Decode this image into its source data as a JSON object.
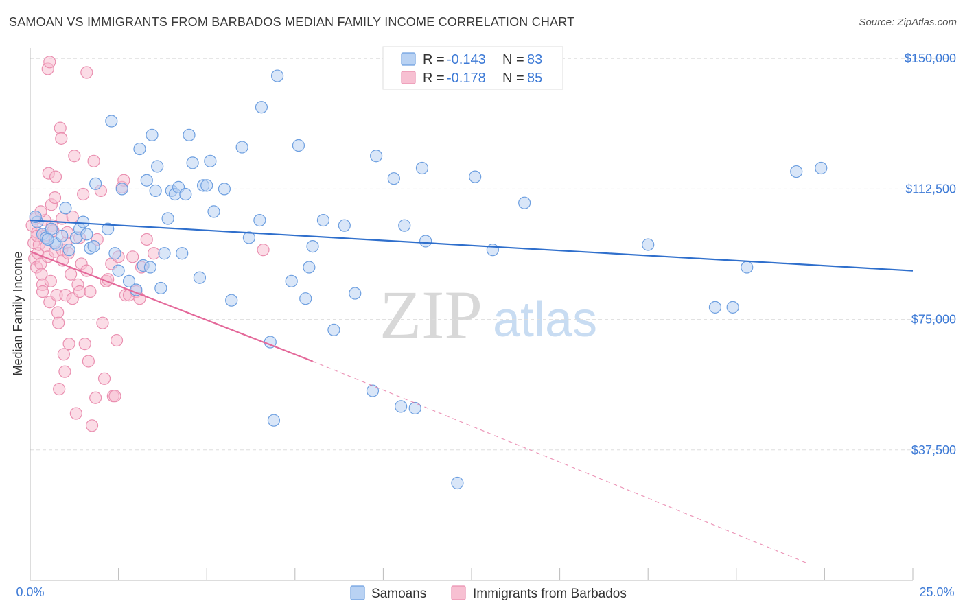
{
  "header": {
    "title": "SAMOAN VS IMMIGRANTS FROM BARBADOS MEDIAN FAMILY INCOME CORRELATION CHART",
    "source": "Source: ZipAtlas.com"
  },
  "watermark": {
    "zip": "ZIP",
    "atlas": "atlas"
  },
  "colors": {
    "samoans_fill": "#b9d2f3",
    "samoans_stroke": "#6d9fe0",
    "samoans_line": "#2f6fcc",
    "barbados_fill": "#f7c0d2",
    "barbados_stroke": "#ea8fb0",
    "barbados_line": "#e4699a",
    "grid": "#dddddd",
    "tick_text": "#3d7ad6"
  },
  "legend": {
    "rows": [
      {
        "r_label": "R =",
        "r_value": "-0.143",
        "n_label": "N =",
        "n_value": "83"
      },
      {
        "r_label": "R =",
        "r_value": "-0.178",
        "n_label": "N =",
        "n_value": "85"
      }
    ]
  },
  "chart_data": {
    "type": "scatter",
    "title": "SAMOAN VS IMMIGRANTS FROM BARBADOS MEDIAN FAMILY INCOME CORRELATION CHART",
    "xlabel": "",
    "ylabel": "Median Family Income",
    "xlim": [
      0,
      25
    ],
    "ylim": [
      0,
      153000
    ],
    "x_tick_labels": [
      "0.0%",
      "25.0%"
    ],
    "y_ticks": [
      {
        "value": 37500,
        "label": "$37,500"
      },
      {
        "value": 75000,
        "label": "$75,000"
      },
      {
        "value": 112500,
        "label": "$112,500"
      },
      {
        "value": 150000,
        "label": "$150,000"
      }
    ],
    "grid": true,
    "series": [
      {
        "name": "Samoans",
        "r": -0.143,
        "n": 83,
        "trend": {
          "x": [
            0.0,
            25.0
          ],
          "y": [
            103500,
            89000
          ],
          "dashed_to": null
        },
        "points": [
          [
            0.2,
            103000
          ],
          [
            0.35,
            99500
          ],
          [
            0.45,
            98500
          ],
          [
            0.6,
            101000
          ],
          [
            0.7,
            97000
          ],
          [
            0.75,
            96500
          ],
          [
            0.9,
            99000
          ],
          [
            1.0,
            107000
          ],
          [
            1.1,
            95000
          ],
          [
            1.3,
            98500
          ],
          [
            1.4,
            101000
          ],
          [
            1.5,
            103000
          ],
          [
            1.7,
            95500
          ],
          [
            1.8,
            96000
          ],
          [
            1.85,
            114000
          ],
          [
            2.2,
            101000
          ],
          [
            2.3,
            132000
          ],
          [
            2.5,
            89000
          ],
          [
            2.6,
            112500
          ],
          [
            2.8,
            86000
          ],
          [
            3.0,
            83500
          ],
          [
            3.1,
            124000
          ],
          [
            3.2,
            90500
          ],
          [
            3.3,
            115000
          ],
          [
            3.45,
            128000
          ],
          [
            3.55,
            112000
          ],
          [
            3.6,
            119000
          ],
          [
            3.7,
            84000
          ],
          [
            3.8,
            94000
          ],
          [
            3.9,
            104000
          ],
          [
            4.0,
            112000
          ],
          [
            4.1,
            111000
          ],
          [
            4.2,
            113000
          ],
          [
            4.3,
            94000
          ],
          [
            4.4,
            111000
          ],
          [
            4.5,
            128000
          ],
          [
            4.6,
            120000
          ],
          [
            4.8,
            87000
          ],
          [
            4.9,
            113500
          ],
          [
            5.0,
            113500
          ],
          [
            5.1,
            120500
          ],
          [
            5.2,
            106000
          ],
          [
            5.5,
            112500
          ],
          [
            5.7,
            80500
          ],
          [
            6.0,
            124500
          ],
          [
            6.2,
            98500
          ],
          [
            6.5,
            103500
          ],
          [
            6.55,
            136000
          ],
          [
            6.8,
            68500
          ],
          [
            6.9,
            46000
          ],
          [
            7.0,
            145000
          ],
          [
            7.4,
            86000
          ],
          [
            7.6,
            125000
          ],
          [
            7.8,
            81000
          ],
          [
            7.9,
            90000
          ],
          [
            8.0,
            96000
          ],
          [
            8.3,
            103500
          ],
          [
            8.6,
            72000
          ],
          [
            8.9,
            102000
          ],
          [
            9.2,
            82500
          ],
          [
            9.7,
            54500
          ],
          [
            9.8,
            122000
          ],
          [
            10.3,
            115500
          ],
          [
            10.5,
            50000
          ],
          [
            10.6,
            102000
          ],
          [
            10.9,
            49500
          ],
          [
            11.1,
            118500
          ],
          [
            11.2,
            97500
          ],
          [
            12.1,
            28000
          ],
          [
            12.6,
            116000
          ],
          [
            13.1,
            95000
          ],
          [
            14.0,
            108500
          ],
          [
            17.5,
            96500
          ],
          [
            19.4,
            78500
          ],
          [
            19.9,
            78500
          ],
          [
            20.3,
            90000
          ],
          [
            21.7,
            117500
          ],
          [
            22.4,
            118500
          ],
          [
            0.15,
            104500
          ],
          [
            0.5,
            98000
          ],
          [
            1.6,
            99500
          ],
          [
            2.4,
            94000
          ],
          [
            3.4,
            90000
          ]
        ]
      },
      {
        "name": "Immigrants from Barbados",
        "r": -0.178,
        "n": 85,
        "trend": {
          "x": [
            0.0,
            8.0
          ],
          "y": [
            94500,
            63000
          ],
          "dashed_to": [
            22.0,
            5000
          ]
        },
        "points": [
          [
            0.05,
            102000
          ],
          [
            0.1,
            97000
          ],
          [
            0.12,
            92500
          ],
          [
            0.15,
            104000
          ],
          [
            0.18,
            90000
          ],
          [
            0.2,
            100000
          ],
          [
            0.22,
            94000
          ],
          [
            0.25,
            96500
          ],
          [
            0.3,
            91000
          ],
          [
            0.32,
            88000
          ],
          [
            0.35,
            85000
          ],
          [
            0.4,
            99000
          ],
          [
            0.42,
            103500
          ],
          [
            0.45,
            96000
          ],
          [
            0.5,
            93000
          ],
          [
            0.52,
            117000
          ],
          [
            0.55,
            80000
          ],
          [
            0.58,
            86000
          ],
          [
            0.6,
            108000
          ],
          [
            0.62,
            102000
          ],
          [
            0.65,
            100500
          ],
          [
            0.7,
            94500
          ],
          [
            0.72,
            116000
          ],
          [
            0.75,
            82000
          ],
          [
            0.78,
            77000
          ],
          [
            0.8,
            74000
          ],
          [
            0.82,
            55000
          ],
          [
            0.85,
            130000
          ],
          [
            0.88,
            127000
          ],
          [
            0.9,
            95000
          ],
          [
            0.92,
            92000
          ],
          [
            0.95,
            65000
          ],
          [
            0.98,
            60000
          ],
          [
            1.0,
            82000
          ],
          [
            1.02,
            97000
          ],
          [
            1.05,
            100000
          ],
          [
            1.08,
            94000
          ],
          [
            1.1,
            68000
          ],
          [
            1.15,
            88000
          ],
          [
            1.2,
            81000
          ],
          [
            1.25,
            122000
          ],
          [
            1.3,
            48000
          ],
          [
            1.35,
            85000
          ],
          [
            1.4,
            83000
          ],
          [
            1.45,
            91000
          ],
          [
            1.5,
            111000
          ],
          [
            1.55,
            68000
          ],
          [
            1.6,
            89000
          ],
          [
            1.65,
            63000
          ],
          [
            1.7,
            83000
          ],
          [
            1.75,
            44500
          ],
          [
            1.8,
            120500
          ],
          [
            1.85,
            52500
          ],
          [
            1.9,
            98000
          ],
          [
            2.0,
            112000
          ],
          [
            2.05,
            74000
          ],
          [
            2.1,
            58000
          ],
          [
            2.15,
            86000
          ],
          [
            2.2,
            86500
          ],
          [
            2.3,
            91000
          ],
          [
            2.35,
            53000
          ],
          [
            2.4,
            53000
          ],
          [
            2.45,
            69000
          ],
          [
            2.5,
            93000
          ],
          [
            2.6,
            113000
          ],
          [
            2.65,
            115000
          ],
          [
            2.7,
            82000
          ],
          [
            2.8,
            82000
          ],
          [
            2.9,
            93000
          ],
          [
            3.0,
            83000
          ],
          [
            3.1,
            81000
          ],
          [
            3.15,
            90000
          ],
          [
            3.3,
            98000
          ],
          [
            3.5,
            94000
          ],
          [
            6.6,
            95000
          ],
          [
            0.5,
            147000
          ],
          [
            0.55,
            149000
          ],
          [
            1.6,
            146000
          ],
          [
            0.3,
            106000
          ],
          [
            0.9,
            104000
          ],
          [
            1.2,
            104500
          ],
          [
            0.35,
            83000
          ],
          [
            0.7,
            110000
          ],
          [
            1.4,
            98500
          ],
          [
            0.2,
            99000
          ]
        ]
      }
    ]
  },
  "bottom_legend": {
    "items": [
      "Samoans",
      "Immigrants from Barbados"
    ]
  }
}
